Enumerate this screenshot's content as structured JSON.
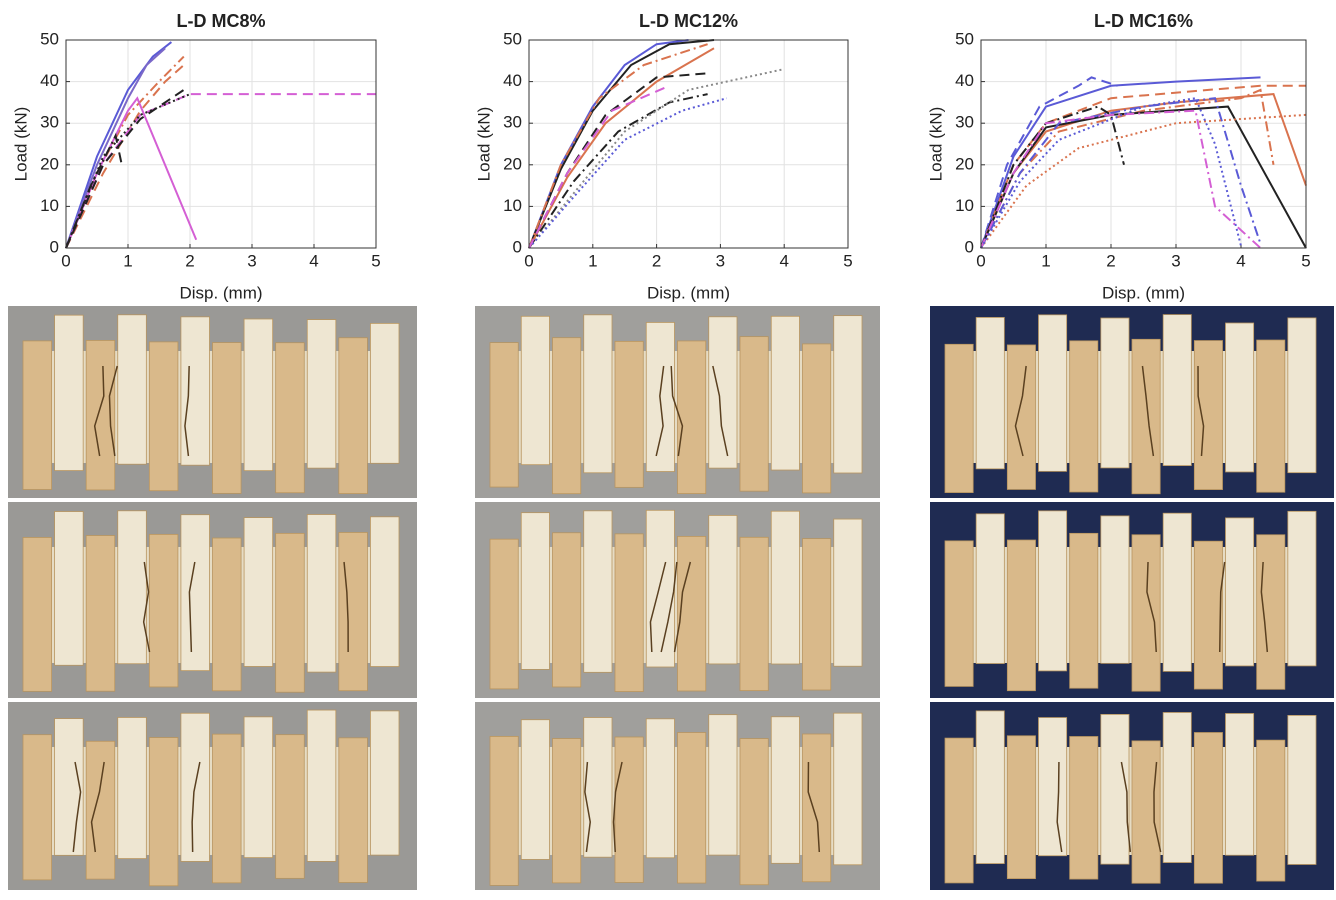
{
  "chart_data": [
    {
      "type": "line",
      "title": "L-D MC8%",
      "xlabel": "Disp. (mm)",
      "ylabel": "Load (kN)",
      "xlim": [
        0,
        5
      ],
      "ylim": [
        0,
        50
      ],
      "xticks": [
        0,
        1,
        2,
        3,
        4,
        5
      ],
      "yticks": [
        0,
        10,
        20,
        30,
        40,
        50
      ],
      "grid": true,
      "series": [
        {
          "color": "#5a5ad6",
          "style": "solid",
          "x": [
            0,
            0.5,
            1,
            1.4,
            1.7
          ],
          "values": [
            0,
            22,
            38,
            46,
            49.5
          ]
        },
        {
          "color": "#7b68c8",
          "style": "solid",
          "x": [
            0,
            0.5,
            1,
            1.3,
            1.6
          ],
          "values": [
            0,
            20,
            36,
            44,
            48
          ]
        },
        {
          "color": "#d9734e",
          "style": "dashdot",
          "x": [
            0,
            0.5,
            1,
            1.5,
            1.9
          ],
          "values": [
            0,
            18,
            32,
            40,
            46
          ]
        },
        {
          "color": "#d9734e",
          "style": "dashed",
          "x": [
            0,
            0.6,
            1.2,
            1.6,
            1.9
          ],
          "values": [
            0,
            18,
            33,
            40,
            44
          ]
        },
        {
          "color": "#d45fd4",
          "style": "solid",
          "x": [
            0,
            0.5,
            1,
            1.15,
            2.1
          ],
          "values": [
            0,
            18,
            33,
            36,
            2
          ]
        },
        {
          "color": "#d45fd4",
          "style": "dashed",
          "x": [
            0,
            0.6,
            1.2,
            2,
            5
          ],
          "values": [
            0,
            20,
            32,
            37,
            37
          ]
        },
        {
          "color": "#222222",
          "style": "dashdot",
          "x": [
            0,
            0.4,
            0.8,
            0.9
          ],
          "values": [
            0,
            15,
            27,
            20
          ]
        },
        {
          "color": "#222222",
          "style": "dotted",
          "x": [
            0,
            0.6,
            1.2,
            2
          ],
          "values": [
            0,
            22,
            32,
            37
          ]
        },
        {
          "color": "#222222",
          "style": "dashed",
          "x": [
            0,
            0.6,
            1.2,
            1.9
          ],
          "values": [
            0,
            20,
            31,
            38
          ]
        }
      ]
    },
    {
      "type": "line",
      "title": "L-D MC12%",
      "xlabel": "Disp. (mm)",
      "ylabel": "Load (kN)",
      "xlim": [
        0,
        5
      ],
      "ylim": [
        0,
        50
      ],
      "xticks": [
        0,
        1,
        2,
        3,
        4,
        5
      ],
      "yticks": [
        0,
        10,
        20,
        30,
        40,
        50
      ],
      "grid": true,
      "series": [
        {
          "color": "#5a5ad6",
          "style": "solid",
          "x": [
            0,
            0.5,
            1,
            1.5,
            2,
            2.5
          ],
          "values": [
            0,
            20,
            34,
            44,
            49,
            50
          ]
        },
        {
          "color": "#222222",
          "style": "solid",
          "x": [
            0,
            0.5,
            1,
            1.6,
            2.2,
            2.9
          ],
          "values": [
            0,
            19,
            33,
            44,
            49,
            50
          ]
        },
        {
          "color": "#d9734e",
          "style": "solid",
          "x": [
            0,
            0.6,
            1.2,
            2,
            2.9
          ],
          "values": [
            0,
            17,
            30,
            40,
            48
          ]
        },
        {
          "color": "#d9734e",
          "style": "dashdot",
          "x": [
            0,
            0.5,
            1.1,
            1.8,
            2.8
          ],
          "values": [
            0,
            20,
            36,
            44,
            49
          ]
        },
        {
          "color": "#222222",
          "style": "dashed",
          "x": [
            0,
            0.6,
            1.2,
            2,
            2.8
          ],
          "values": [
            0,
            18,
            32,
            41,
            42
          ]
        },
        {
          "color": "#222222",
          "style": "dashdot",
          "x": [
            0,
            0.7,
            1.4,
            2.2,
            2.8
          ],
          "values": [
            0,
            16,
            28,
            35,
            37
          ]
        },
        {
          "color": "#888888",
          "style": "dotted",
          "x": [
            0,
            0.8,
            1.5,
            2.5,
            4
          ],
          "values": [
            0,
            15,
            28,
            38,
            43
          ]
        },
        {
          "color": "#5a5ad6",
          "style": "dotted",
          "x": [
            0,
            0.8,
            1.5,
            2.4,
            3.1
          ],
          "values": [
            0,
            14,
            26,
            33,
            36
          ]
        },
        {
          "color": "#d45fd4",
          "style": "dashed",
          "x": [
            0,
            0.6,
            1.3,
            2.2
          ],
          "values": [
            0,
            18,
            33,
            39
          ]
        }
      ]
    },
    {
      "type": "line",
      "title": "L-D MC16%",
      "xlabel": "Disp. (mm)",
      "ylabel": "Load (kN)",
      "xlim": [
        0,
        5
      ],
      "ylim": [
        0,
        50
      ],
      "xticks": [
        0,
        1,
        2,
        3,
        4,
        5
      ],
      "yticks": [
        0,
        10,
        20,
        30,
        40,
        50
      ],
      "grid": true,
      "series": [
        {
          "color": "#5a5ad6",
          "style": "solid",
          "x": [
            0,
            0.5,
            1,
            2,
            3,
            4.3
          ],
          "values": [
            0,
            22,
            34,
            39,
            40,
            41
          ]
        },
        {
          "color": "#5a5ad6",
          "style": "dashed",
          "x": [
            0,
            0.4,
            0.9,
            1.5,
            1.7,
            2.1
          ],
          "values": [
            0,
            20,
            34,
            39,
            41,
            39
          ]
        },
        {
          "color": "#d9734e",
          "style": "dashed",
          "x": [
            0,
            0.5,
            1,
            2,
            3.5,
            4.3,
            5
          ],
          "values": [
            0,
            20,
            30,
            36,
            38,
            39,
            39
          ]
        },
        {
          "color": "#d9734e",
          "style": "solid",
          "x": [
            0,
            0.5,
            1,
            2,
            3,
            4.5,
            5
          ],
          "values": [
            0,
            18,
            28,
            33,
            35,
            37,
            15
          ]
        },
        {
          "color": "#d9734e",
          "style": "dashdot",
          "x": [
            0,
            0.6,
            1.2,
            2.5,
            4,
            4.3,
            4.5
          ],
          "values": [
            0,
            18,
            28,
            33,
            36,
            38,
            20
          ]
        },
        {
          "color": "#222222",
          "style": "solid",
          "x": [
            0,
            0.5,
            1,
            2,
            3.8,
            5
          ],
          "values": [
            0,
            18,
            29,
            32,
            34,
            0
          ]
        },
        {
          "color": "#222222",
          "style": "dashdot",
          "x": [
            0,
            0.5,
            1,
            1.8,
            2,
            2.2
          ],
          "values": [
            0,
            20,
            30,
            34,
            32,
            20
          ]
        },
        {
          "color": "#5a5ad6",
          "style": "dashdot",
          "x": [
            0,
            0.6,
            1.2,
            2.5,
            3.6,
            4,
            4.3
          ],
          "values": [
            0,
            18,
            30,
            34,
            36,
            15,
            1
          ]
        },
        {
          "color": "#d45fd4",
          "style": "dashdot",
          "x": [
            0,
            0.5,
            1,
            2,
            3.3,
            3.6,
            4.3
          ],
          "values": [
            0,
            18,
            30,
            32,
            33,
            10,
            0
          ]
        },
        {
          "color": "#d9734e",
          "style": "dotted",
          "x": [
            0,
            0.7,
            1.5,
            3,
            5
          ],
          "values": [
            0,
            15,
            24,
            30,
            32
          ]
        },
        {
          "color": "#5a5ad6",
          "style": "dotted",
          "x": [
            0,
            0.6,
            1.2,
            2.5,
            3.3,
            3.6,
            4
          ],
          "values": [
            0,
            16,
            26,
            34,
            36,
            25,
            0.5
          ]
        }
      ]
    }
  ]
}
